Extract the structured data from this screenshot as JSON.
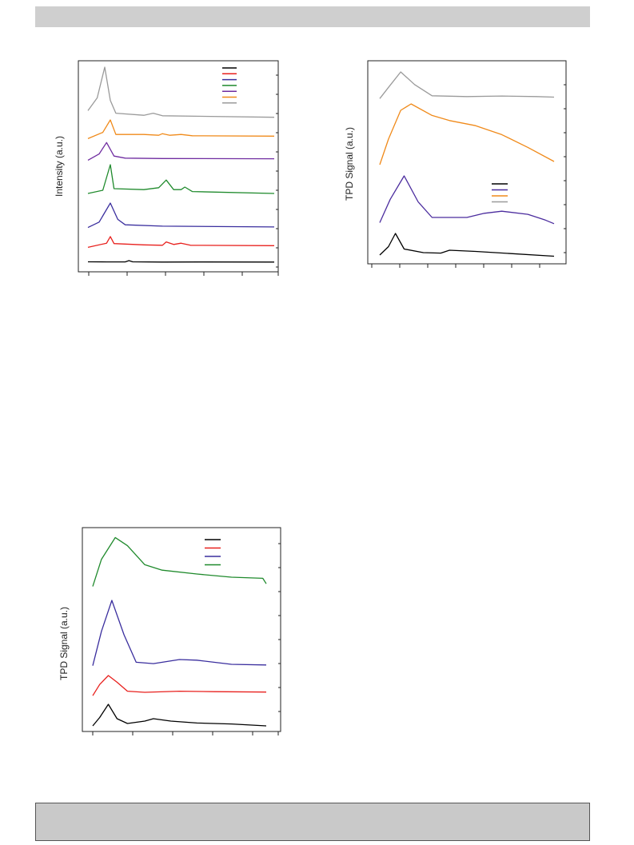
{
  "chart_data": [
    {
      "type": "line",
      "ylabel": "Intensity (a.u.)",
      "xlabel": "",
      "grid": false,
      "legend_position": "top-right",
      "series": [
        {
          "color": "#000000",
          "points": [
            [
              0,
              0.05
            ],
            [
              0.1,
              0.04
            ],
            [
              0.2,
              0.04
            ],
            [
              0.22,
              0.2
            ],
            [
              0.24,
              0.05
            ],
            [
              0.4,
              0.02
            ],
            [
              0.6,
              0.03
            ],
            [
              1,
              0.02
            ]
          ]
        },
        {
          "color": "#e8201d",
          "points": [
            [
              0,
              0.1
            ],
            [
              0.1,
              0.3
            ],
            [
              0.12,
              0.62
            ],
            [
              0.14,
              0.28
            ],
            [
              0.3,
              0.22
            ],
            [
              0.4,
              0.2
            ],
            [
              0.42,
              0.36
            ],
            [
              0.46,
              0.24
            ],
            [
              0.5,
              0.3
            ],
            [
              0.55,
              0.2
            ],
            [
              1,
              0.18
            ]
          ]
        },
        {
          "color": "#3a2e9e",
          "points": [
            [
              0,
              0.1
            ],
            [
              0.06,
              0.3
            ],
            [
              0.12,
              1.0
            ],
            [
              0.16,
              0.4
            ],
            [
              0.2,
              0.2
            ],
            [
              0.4,
              0.15
            ],
            [
              1,
              0.12
            ]
          ]
        },
        {
          "color": "#1f8a2c",
          "points": [
            [
              0,
              0.1
            ],
            [
              0.08,
              0.2
            ],
            [
              0.12,
              1.0
            ],
            [
              0.14,
              0.25
            ],
            [
              0.3,
              0.22
            ],
            [
              0.38,
              0.28
            ],
            [
              0.42,
              0.52
            ],
            [
              0.46,
              0.22
            ],
            [
              0.5,
              0.22
            ],
            [
              0.52,
              0.3
            ],
            [
              0.56,
              0.16
            ],
            [
              1,
              0.1
            ]
          ]
        },
        {
          "color": "#6f2ca0",
          "points": [
            [
              0,
              0.1
            ],
            [
              0.06,
              0.4
            ],
            [
              0.1,
              0.95
            ],
            [
              0.14,
              0.3
            ],
            [
              0.2,
              0.2
            ],
            [
              0.4,
              0.18
            ],
            [
              1,
              0.17
            ]
          ]
        },
        {
          "color": "#f08a1a",
          "points": [
            [
              0,
              0.1
            ],
            [
              0.08,
              0.4
            ],
            [
              0.12,
              1.0
            ],
            [
              0.15,
              0.3
            ],
            [
              0.3,
              0.3
            ],
            [
              0.38,
              0.26
            ],
            [
              0.4,
              0.34
            ],
            [
              0.44,
              0.26
            ],
            [
              0.5,
              0.3
            ],
            [
              0.56,
              0.24
            ],
            [
              1,
              0.22
            ]
          ]
        },
        {
          "color": "#9a9a9a",
          "points": [
            [
              0,
              0.15
            ],
            [
              0.05,
              0.4
            ],
            [
              0.09,
              1.0
            ],
            [
              0.12,
              0.35
            ],
            [
              0.15,
              0.1
            ],
            [
              0.3,
              0.06
            ],
            [
              0.35,
              0.1
            ],
            [
              0.4,
              0.05
            ],
            [
              1,
              0.02
            ]
          ]
        }
      ]
    },
    {
      "type": "line",
      "ylabel": "TPD Signal (a.u.)",
      "xlabel": "",
      "grid": false,
      "legend_position": "right-middle",
      "series": [
        {
          "color": "#000000",
          "points": [
            [
              0,
              0.1
            ],
            [
              0.05,
              0.45
            ],
            [
              0.09,
              1.0
            ],
            [
              0.14,
              0.35
            ],
            [
              0.25,
              0.2
            ],
            [
              0.35,
              0.18
            ],
            [
              0.4,
              0.3
            ],
            [
              0.55,
              0.25
            ],
            [
              1,
              0.05
            ]
          ]
        },
        {
          "color": "#4b2c9e",
          "points": [
            [
              0,
              0.1
            ],
            [
              0.06,
              0.55
            ],
            [
              0.14,
              1.0
            ],
            [
              0.22,
              0.5
            ],
            [
              0.3,
              0.2
            ],
            [
              0.5,
              0.2
            ],
            [
              0.6,
              0.28
            ],
            [
              0.7,
              0.32
            ],
            [
              0.85,
              0.26
            ],
            [
              0.95,
              0.15
            ],
            [
              1,
              0.08
            ]
          ]
        },
        {
          "color": "#f08a1a",
          "points": [
            [
              0,
              0.05
            ],
            [
              0.05,
              0.45
            ],
            [
              0.12,
              0.9
            ],
            [
              0.18,
              1.0
            ],
            [
              0.3,
              0.82
            ],
            [
              0.4,
              0.74
            ],
            [
              0.55,
              0.66
            ],
            [
              0.7,
              0.52
            ],
            [
              0.85,
              0.32
            ],
            [
              1,
              0.1
            ]
          ]
        },
        {
          "color": "#9a9a9a",
          "points": [
            [
              0,
              0.05
            ],
            [
              0.05,
              0.45
            ],
            [
              0.12,
              1.0
            ],
            [
              0.2,
              0.55
            ],
            [
              0.3,
              0.15
            ],
            [
              0.5,
              0.12
            ],
            [
              0.7,
              0.14
            ],
            [
              0.9,
              0.12
            ],
            [
              1,
              0.1
            ]
          ]
        }
      ]
    },
    {
      "type": "line",
      "ylabel": "TPD Signal (a.u.)",
      "xlabel": "",
      "grid": false,
      "legend_position": "top-right",
      "series": [
        {
          "color": "#000000",
          "points": [
            [
              0,
              0.1
            ],
            [
              0.04,
              0.45
            ],
            [
              0.09,
              1.0
            ],
            [
              0.14,
              0.4
            ],
            [
              0.2,
              0.2
            ],
            [
              0.3,
              0.3
            ],
            [
              0.35,
              0.4
            ],
            [
              0.45,
              0.3
            ],
            [
              0.6,
              0.22
            ],
            [
              0.8,
              0.18
            ],
            [
              1,
              0.1
            ]
          ]
        },
        {
          "color": "#e8201d",
          "points": [
            [
              0,
              0.1
            ],
            [
              0.04,
              0.6
            ],
            [
              0.09,
              1.0
            ],
            [
              0.14,
              0.7
            ],
            [
              0.2,
              0.3
            ],
            [
              0.3,
              0.25
            ],
            [
              0.5,
              0.3
            ],
            [
              0.7,
              0.28
            ],
            [
              1,
              0.26
            ]
          ]
        },
        {
          "color": "#3a2e9e",
          "points": [
            [
              0,
              0.05
            ],
            [
              0.05,
              0.55
            ],
            [
              0.11,
              1.0
            ],
            [
              0.18,
              0.5
            ],
            [
              0.25,
              0.1
            ],
            [
              0.35,
              0.08
            ],
            [
              0.5,
              0.14
            ],
            [
              0.6,
              0.13
            ],
            [
              0.8,
              0.07
            ],
            [
              1,
              0.06
            ]
          ]
        },
        {
          "color": "#1f8a2c",
          "points": [
            [
              0,
              0.05
            ],
            [
              0.05,
              0.55
            ],
            [
              0.13,
              0.95
            ],
            [
              0.2,
              0.8
            ],
            [
              0.3,
              0.45
            ],
            [
              0.4,
              0.35
            ],
            [
              0.6,
              0.28
            ],
            [
              0.8,
              0.22
            ],
            [
              0.98,
              0.2
            ],
            [
              1,
              0.1
            ]
          ]
        }
      ]
    }
  ]
}
